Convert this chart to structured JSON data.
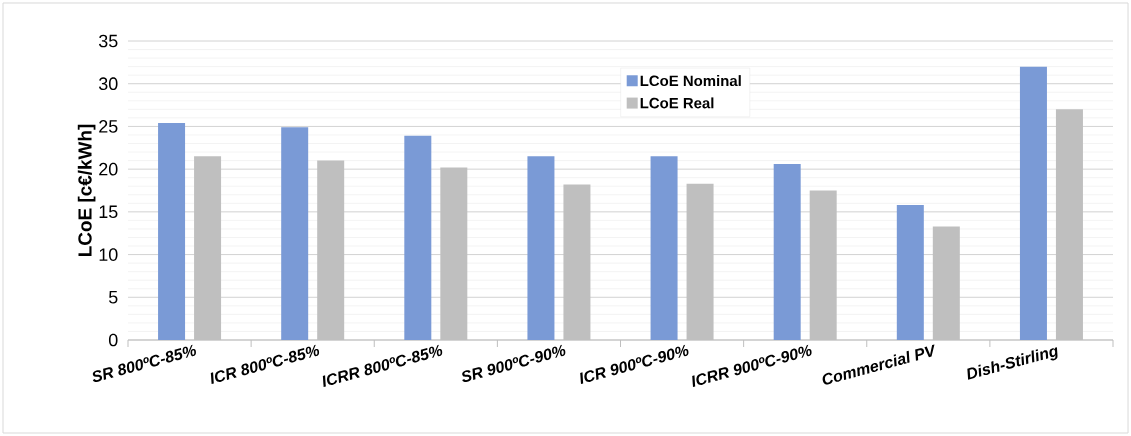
{
  "chart_data": {
    "type": "bar",
    "ylabel": "LCoE [c€/kWh]",
    "categories": [
      "SR 800ºC-85%",
      "ICR 800ºC-85%",
      "ICRR 800ºC-85%",
      "SR 900ºC-90%",
      "ICR 900ºC-90%",
      "ICRR 900ºC-90%",
      "Commercial PV",
      "Dish-Stirling"
    ],
    "series": [
      {
        "name": "LCoE Nominal",
        "color": "#7a9ad6",
        "values": [
          25.4,
          24.9,
          23.9,
          21.5,
          21.5,
          20.6,
          15.8,
          32.0
        ]
      },
      {
        "name": "LCoE Real",
        "color": "#bfbfbf",
        "values": [
          21.5,
          21.0,
          20.2,
          18.2,
          18.3,
          17.5,
          13.3,
          27.0
        ]
      }
    ],
    "ylim": [
      0,
      35
    ],
    "yticks": [
      0,
      5,
      10,
      15,
      20,
      25,
      30,
      35
    ],
    "grid": "y",
    "legend": "top"
  }
}
